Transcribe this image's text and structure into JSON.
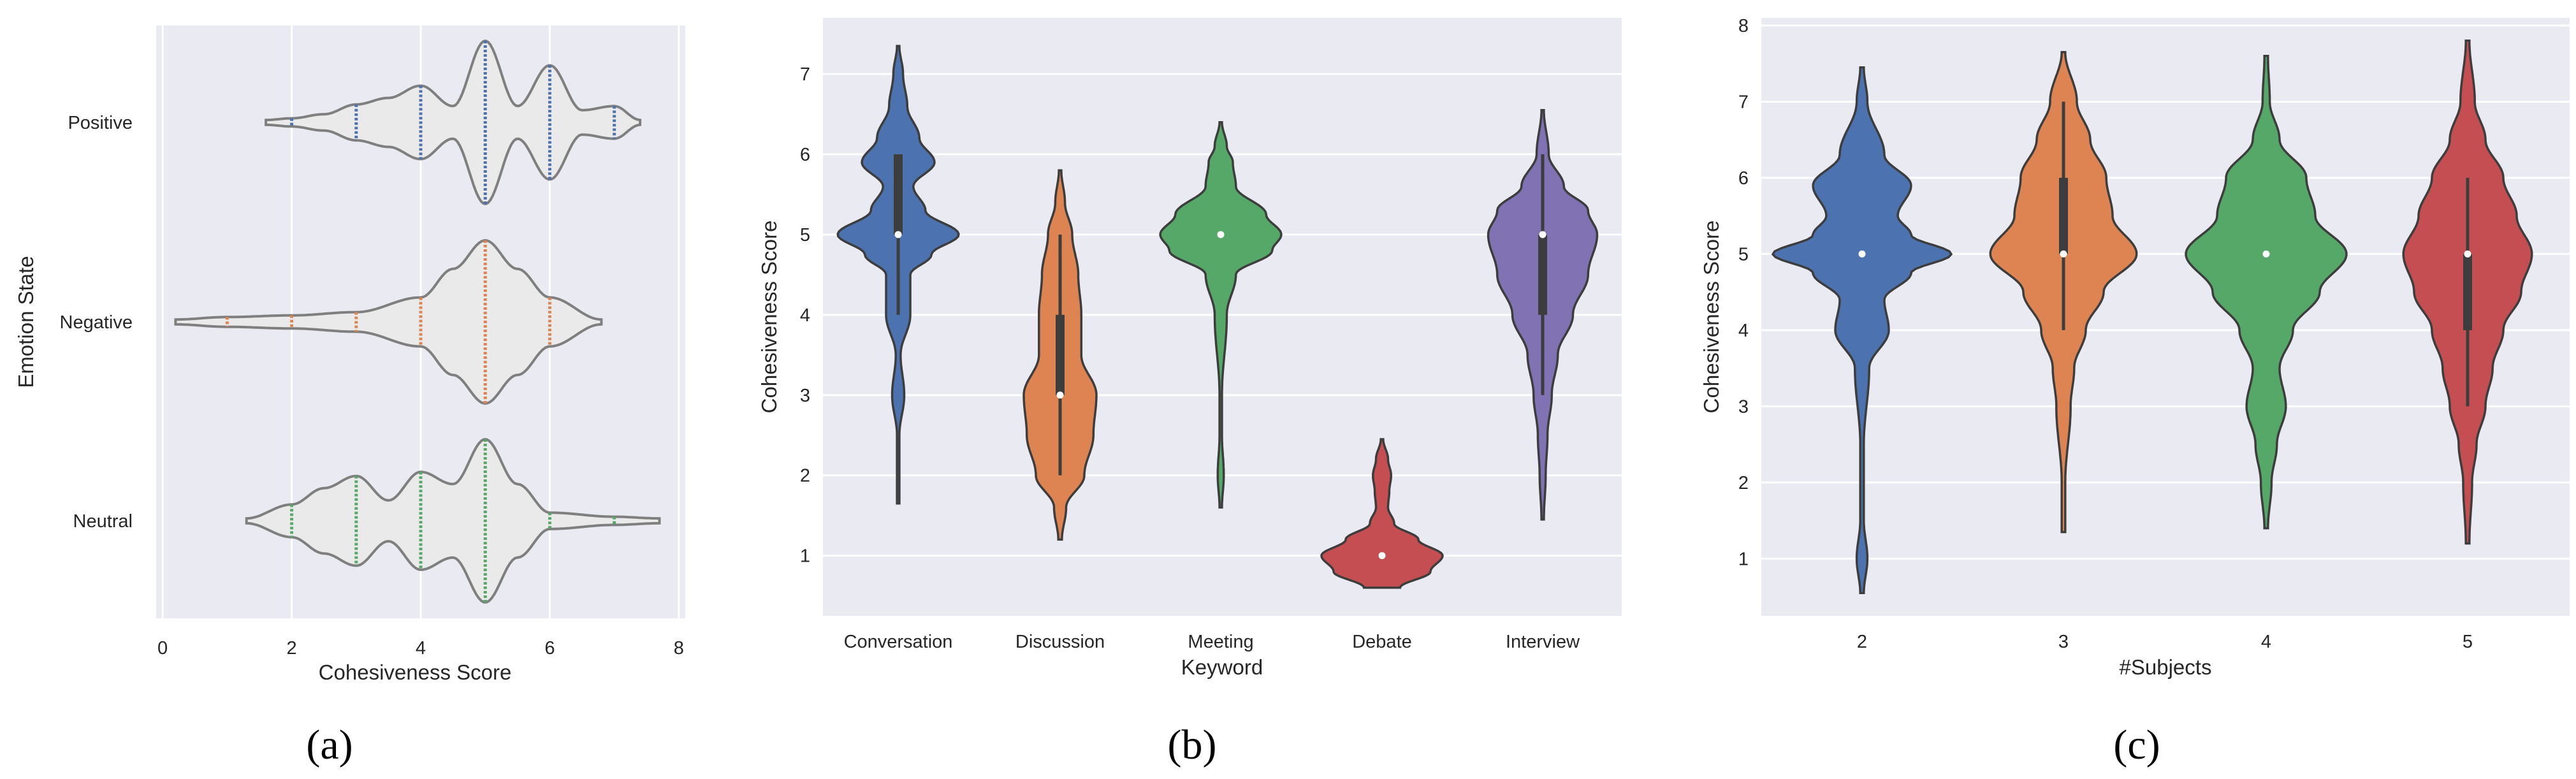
{
  "figure_labels": [
    "(a)",
    "(b)",
    "(c)"
  ],
  "chart_data": [
    {
      "type": "violin",
      "orientation": "horizontal",
      "panel": "(a)",
      "title": "",
      "xlabel": "Cohesiveness Score",
      "ylabel": "Emotion State",
      "xlim": [
        -0.1,
        8.1
      ],
      "xticks": [
        0,
        2,
        4,
        6,
        8
      ],
      "grid": true,
      "inner": "stick",
      "categories": [
        "Positive",
        "Negative",
        "Neutral"
      ],
      "series": [
        {
          "name": "Positive",
          "color": "#4c72b0",
          "fill": "#eaeaea",
          "range": [
            1.6,
            7.4
          ],
          "density": [
            [
              1.6,
              0.03
            ],
            [
              2.0,
              0.05
            ],
            [
              2.5,
              0.1
            ],
            [
              3.0,
              0.22
            ],
            [
              3.5,
              0.3
            ],
            [
              4.0,
              0.45
            ],
            [
              4.5,
              0.2
            ],
            [
              5.0,
              1.0
            ],
            [
              5.5,
              0.2
            ],
            [
              6.0,
              0.7
            ],
            [
              6.5,
              0.15
            ],
            [
              7.0,
              0.2
            ],
            [
              7.4,
              0.03
            ]
          ],
          "observations": [
            2,
            3,
            4,
            5,
            6,
            7
          ]
        },
        {
          "name": "Negative",
          "color": "#dd8452",
          "fill": "#eaeaea",
          "range": [
            0.2,
            6.8
          ],
          "density": [
            [
              0.2,
              0.03
            ],
            [
              1.0,
              0.06
            ],
            [
              2.0,
              0.08
            ],
            [
              3.0,
              0.12
            ],
            [
              4.0,
              0.3
            ],
            [
              4.5,
              0.65
            ],
            [
              5.0,
              1.0
            ],
            [
              5.5,
              0.65
            ],
            [
              6.0,
              0.3
            ],
            [
              6.8,
              0.03
            ]
          ],
          "observations": [
            1,
            2,
            3,
            4,
            5,
            6
          ]
        },
        {
          "name": "Neutral",
          "color": "#55a868",
          "fill": "#eaeaea",
          "range": [
            1.3,
            7.7
          ],
          "density": [
            [
              1.3,
              0.03
            ],
            [
              2.0,
              0.2
            ],
            [
              2.5,
              0.4
            ],
            [
              3.0,
              0.55
            ],
            [
              3.5,
              0.25
            ],
            [
              4.0,
              0.6
            ],
            [
              4.5,
              0.45
            ],
            [
              5.0,
              1.0
            ],
            [
              5.5,
              0.45
            ],
            [
              6.0,
              0.1
            ],
            [
              7.0,
              0.05
            ],
            [
              7.7,
              0.03
            ]
          ],
          "observations": [
            2,
            3,
            4,
            5,
            6,
            7
          ]
        }
      ]
    },
    {
      "type": "violin",
      "orientation": "vertical",
      "panel": "(b)",
      "title": "",
      "xlabel": "Keyword",
      "ylabel": "Cohesiveness Score",
      "ylim": [
        0.25,
        7.7
      ],
      "yticks": [
        1,
        2,
        3,
        4,
        5,
        6,
        7
      ],
      "grid": true,
      "inner": "box",
      "categories": [
        "Conversation",
        "Discussion",
        "Meeting",
        "Debate",
        "Interview"
      ],
      "series": [
        {
          "name": "Conversation",
          "color": "#4c72b0",
          "median": 5,
          "q1": 5,
          "q3": 6,
          "whisker": [
            4,
            6
          ],
          "range": [
            1.65,
            7.35
          ],
          "density": [
            [
              1.65,
              0.02
            ],
            [
              2.5,
              0.02
            ],
            [
              3.0,
              0.1
            ],
            [
              3.5,
              0.04
            ],
            [
              4.0,
              0.2
            ],
            [
              4.5,
              0.2
            ],
            [
              4.75,
              0.55
            ],
            [
              5.0,
              1.0
            ],
            [
              5.3,
              0.45
            ],
            [
              5.6,
              0.25
            ],
            [
              5.9,
              0.6
            ],
            [
              6.2,
              0.35
            ],
            [
              6.6,
              0.15
            ],
            [
              7.0,
              0.08
            ],
            [
              7.35,
              0.02
            ]
          ]
        },
        {
          "name": "Discussion",
          "color": "#dd8452",
          "median": 3,
          "q1": 3,
          "q3": 4,
          "whisker": [
            2,
            5
          ],
          "range": [
            1.2,
            5.8
          ],
          "density": [
            [
              1.2,
              0.03
            ],
            [
              1.6,
              0.1
            ],
            [
              2.0,
              0.4
            ],
            [
              2.5,
              0.55
            ],
            [
              3.0,
              0.6
            ],
            [
              3.5,
              0.35
            ],
            [
              4.0,
              0.35
            ],
            [
              4.5,
              0.3
            ],
            [
              5.0,
              0.2
            ],
            [
              5.4,
              0.08
            ],
            [
              5.8,
              0.02
            ]
          ]
        },
        {
          "name": "Meeting",
          "color": "#55a868",
          "median": 5,
          "q1": 5,
          "q3": 5,
          "whisker": [
            5,
            5
          ],
          "range": [
            1.6,
            6.4
          ],
          "density": [
            [
              1.6,
              0.02
            ],
            [
              2.0,
              0.05
            ],
            [
              2.5,
              0.02
            ],
            [
              3.0,
              0.02
            ],
            [
              4.0,
              0.1
            ],
            [
              4.5,
              0.25
            ],
            [
              4.8,
              0.85
            ],
            [
              5.0,
              1.0
            ],
            [
              5.25,
              0.75
            ],
            [
              5.6,
              0.25
            ],
            [
              5.9,
              0.2
            ],
            [
              6.1,
              0.1
            ],
            [
              6.4,
              0.02
            ]
          ]
        },
        {
          "name": "Debate",
          "color": "#c44e52",
          "median": 1,
          "q1": 1,
          "q3": 1,
          "whisker": [
            1,
            1
          ],
          "range": [
            0.6,
            2.45
          ],
          "density": [
            [
              0.6,
              0.3
            ],
            [
              0.8,
              0.8
            ],
            [
              1.0,
              1.0
            ],
            [
              1.2,
              0.6
            ],
            [
              1.4,
              0.2
            ],
            [
              1.6,
              0.1
            ],
            [
              1.8,
              0.12
            ],
            [
              2.0,
              0.15
            ],
            [
              2.2,
              0.1
            ],
            [
              2.45,
              0.02
            ]
          ]
        },
        {
          "name": "Interview",
          "color": "#8172b3",
          "median": 5,
          "q1": 4,
          "q3": 5,
          "whisker": [
            3,
            6
          ],
          "range": [
            1.45,
            6.55
          ],
          "density": [
            [
              1.45,
              0.02
            ],
            [
              2.0,
              0.05
            ],
            [
              2.5,
              0.08
            ],
            [
              3.0,
              0.15
            ],
            [
              3.5,
              0.25
            ],
            [
              4.0,
              0.5
            ],
            [
              4.5,
              0.75
            ],
            [
              5.0,
              0.9
            ],
            [
              5.3,
              0.75
            ],
            [
              5.6,
              0.35
            ],
            [
              6.0,
              0.1
            ],
            [
              6.55,
              0.02
            ]
          ]
        }
      ]
    },
    {
      "type": "violin",
      "orientation": "vertical",
      "panel": "(c)",
      "title": "",
      "xlabel": "#Subjects",
      "ylabel": "Cohesiveness Score",
      "ylim": [
        0.25,
        8.1
      ],
      "yticks": [
        1,
        2,
        3,
        4,
        5,
        6,
        7,
        8
      ],
      "grid": true,
      "inner": "box",
      "categories": [
        "2",
        "3",
        "4",
        "5"
      ],
      "series": [
        {
          "name": "2",
          "color": "#4c72b0",
          "median": 5,
          "q1": 5,
          "q3": 5,
          "whisker": [
            5,
            5
          ],
          "range": [
            0.55,
            7.45
          ],
          "density": [
            [
              0.55,
              0.02
            ],
            [
              1.0,
              0.06
            ],
            [
              1.5,
              0.02
            ],
            [
              2.5,
              0.02
            ],
            [
              3.5,
              0.08
            ],
            [
              4.0,
              0.3
            ],
            [
              4.4,
              0.25
            ],
            [
              4.75,
              0.55
            ],
            [
              5.0,
              1.0
            ],
            [
              5.25,
              0.55
            ],
            [
              5.5,
              0.4
            ],
            [
              5.9,
              0.55
            ],
            [
              6.3,
              0.25
            ],
            [
              7.0,
              0.06
            ],
            [
              7.45,
              0.02
            ]
          ]
        },
        {
          "name": "3",
          "color": "#dd8452",
          "median": 5,
          "q1": 5,
          "q3": 6,
          "whisker": [
            4,
            7
          ],
          "range": [
            1.35,
            7.65
          ],
          "density": [
            [
              1.35,
              0.02
            ],
            [
              2.0,
              0.02
            ],
            [
              3.0,
              0.08
            ],
            [
              3.5,
              0.12
            ],
            [
              4.0,
              0.25
            ],
            [
              4.5,
              0.45
            ],
            [
              5.0,
              0.82
            ],
            [
              5.5,
              0.55
            ],
            [
              6.0,
              0.48
            ],
            [
              6.5,
              0.3
            ],
            [
              7.0,
              0.15
            ],
            [
              7.65,
              0.02
            ]
          ]
        },
        {
          "name": "4",
          "color": "#55a868",
          "median": 5,
          "q1": 5,
          "q3": 5,
          "whisker": [
            5,
            5
          ],
          "range": [
            1.4,
            7.6
          ],
          "density": [
            [
              1.4,
              0.02
            ],
            [
              2.0,
              0.06
            ],
            [
              2.5,
              0.12
            ],
            [
              3.0,
              0.22
            ],
            [
              3.5,
              0.15
            ],
            [
              4.0,
              0.3
            ],
            [
              4.5,
              0.6
            ],
            [
              5.0,
              0.9
            ],
            [
              5.5,
              0.55
            ],
            [
              6.0,
              0.45
            ],
            [
              6.5,
              0.15
            ],
            [
              7.0,
              0.04
            ],
            [
              7.6,
              0.02
            ]
          ]
        },
        {
          "name": "5",
          "color": "#c44e52",
          "median": 5,
          "q1": 4,
          "q3": 5,
          "whisker": [
            3,
            6
          ],
          "range": [
            1.2,
            7.8
          ],
          "density": [
            [
              1.2,
              0.02
            ],
            [
              2.0,
              0.05
            ],
            [
              2.5,
              0.1
            ],
            [
              3.0,
              0.2
            ],
            [
              3.5,
              0.28
            ],
            [
              4.0,
              0.4
            ],
            [
              4.5,
              0.6
            ],
            [
              5.0,
              0.72
            ],
            [
              5.5,
              0.55
            ],
            [
              6.0,
              0.4
            ],
            [
              6.5,
              0.2
            ],
            [
              7.0,
              0.08
            ],
            [
              7.8,
              0.02
            ]
          ]
        }
      ]
    }
  ]
}
